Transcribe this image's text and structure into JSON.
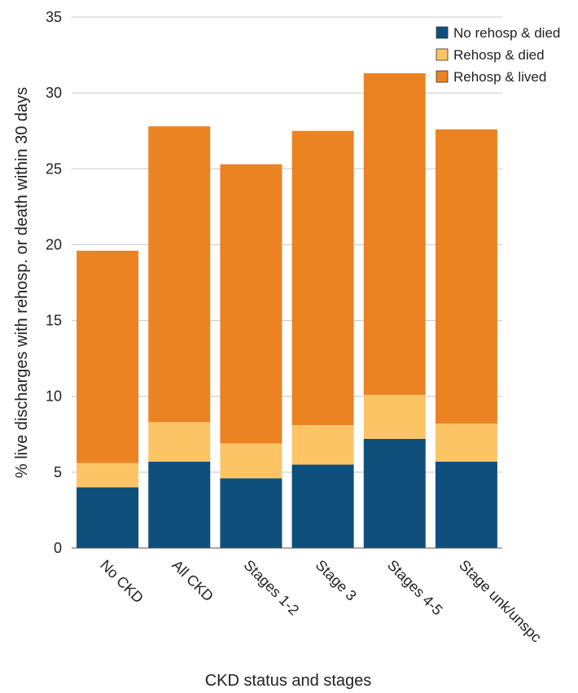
{
  "chart_data": {
    "type": "bar",
    "stacked": true,
    "title": "",
    "xlabel": "CKD status and stages",
    "ylabel": "% live discharges with rehosp. or death within 30 days",
    "ylim": [
      0,
      35
    ],
    "yticks": [
      0,
      5,
      10,
      15,
      20,
      25,
      30,
      35
    ],
    "grid": true,
    "legend_position": "top-right",
    "categories": [
      "No CKD",
      "All CKD",
      "Stages 1-2",
      "Stage 3",
      "Stages 4-5",
      "Stage unk/unspc"
    ],
    "series": [
      {
        "name": "No rehosp & died",
        "color": "#0f4f7b",
        "values": [
          4.0,
          5.7,
          4.6,
          5.5,
          7.2,
          5.7
        ]
      },
      {
        "name": "Rehosp & died",
        "color": "#fdc466",
        "values": [
          1.6,
          2.6,
          2.3,
          2.6,
          2.9,
          2.5
        ]
      },
      {
        "name": "Rehosp & lived",
        "color": "#ec8322",
        "values": [
          14.0,
          19.5,
          18.4,
          19.4,
          21.2,
          19.4
        ]
      }
    ]
  }
}
